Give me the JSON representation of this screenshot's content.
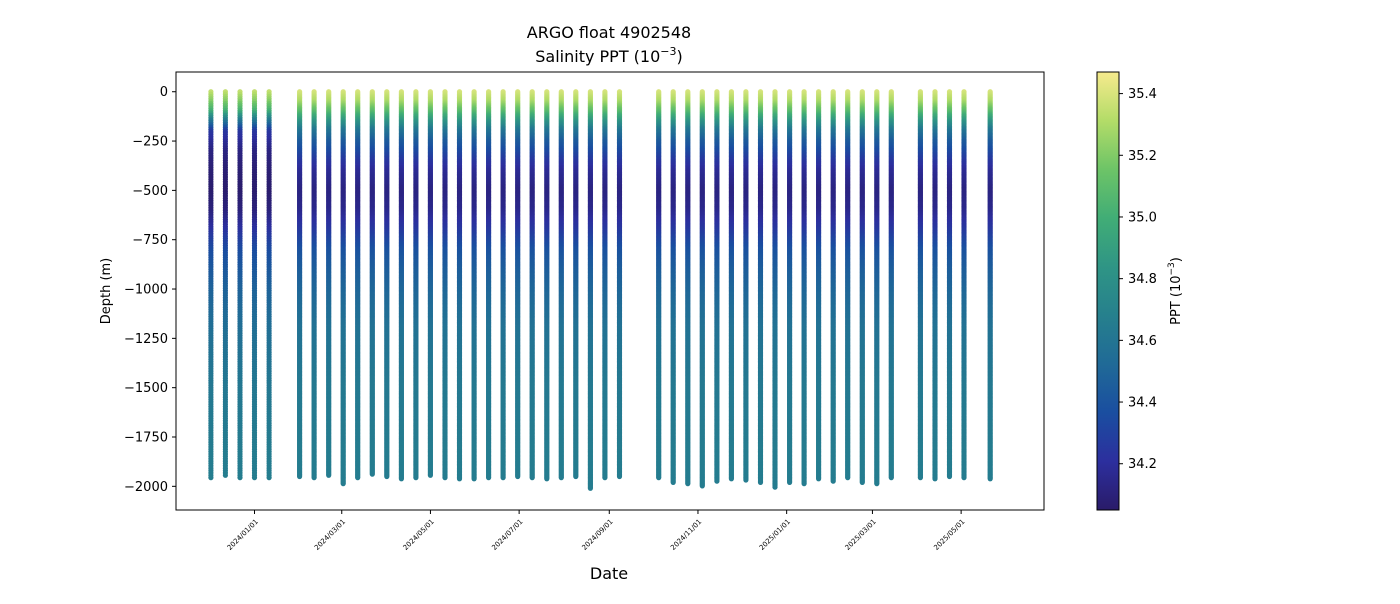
{
  "chart_data": {
    "type": "scatter",
    "title_line1": "ARGO float 4902548",
    "title_line2_prefix": "Salinity PPT (10",
    "title_line2_sup": "−3",
    "title_line2_suffix": ")",
    "xlabel": "Date",
    "ylabel": "Depth (m)",
    "xlim": [
      "2023-11-08",
      "2025-06-27"
    ],
    "ylim": [
      -2120,
      100
    ],
    "x_ticks": [
      "2024/01/01",
      "2024/03/01",
      "2024/05/01",
      "2024/07/01",
      "2024/09/01",
      "2024/11/01",
      "2025/01/01",
      "2025/03/01",
      "2025/05/01"
    ],
    "y_ticks": [
      0,
      -250,
      -500,
      -750,
      -1000,
      -1250,
      -1500,
      -1750,
      -2000
    ],
    "y_tick_labels": [
      "0",
      "−250",
      "−500",
      "−750",
      "−1000",
      "−1250",
      "−1500",
      "−1750",
      "−2000"
    ],
    "grid": false,
    "colorbar": {
      "label_prefix": "PPT (10",
      "label_sup": "−3",
      "label_suffix": ")",
      "colormap_stops": [
        "#2a1b69",
        "#2c2f9e",
        "#1a4ea0",
        "#206a97",
        "#26808d",
        "#2f9585",
        "#41ad76",
        "#6dc467",
        "#b3dc68",
        "#f6ea8d"
      ],
      "vmin": 34.05,
      "vmax": 35.47,
      "ticks": [
        34.2,
        34.4,
        34.6,
        34.8,
        35.0,
        35.2,
        35.4
      ],
      "tick_labels": [
        "34.2",
        "34.4",
        "34.6",
        "34.8",
        "35.0",
        "35.2",
        "35.4"
      ]
    },
    "profile_dates": [
      "2023-12-02",
      "2023-12-12",
      "2023-12-22",
      "2024-01-01",
      "2024-01-11",
      "2024-02-01",
      "2024-02-11",
      "2024-02-21",
      "2024-03-02",
      "2024-03-12",
      "2024-03-22",
      "2024-04-01",
      "2024-04-11",
      "2024-04-21",
      "2024-05-01",
      "2024-05-11",
      "2024-05-21",
      "2024-05-31",
      "2024-06-10",
      "2024-06-20",
      "2024-06-30",
      "2024-07-10",
      "2024-07-20",
      "2024-07-30",
      "2024-08-09",
      "2024-08-19",
      "2024-08-29",
      "2024-09-08",
      "2024-10-05",
      "2024-10-15",
      "2024-10-25",
      "2024-11-04",
      "2024-11-14",
      "2024-11-24",
      "2024-12-04",
      "2024-12-14",
      "2024-12-24",
      "2025-01-03",
      "2025-01-13",
      "2025-01-23",
      "2025-02-02",
      "2025-02-12",
      "2025-02-22",
      "2025-03-04",
      "2025-03-14",
      "2025-04-03",
      "2025-04-13",
      "2025-04-23",
      "2025-05-03",
      "2025-05-21"
    ],
    "profile_max_depths": [
      -1965,
      -1955,
      -1960,
      -1958,
      -1965,
      -1955,
      -1960,
      -1945,
      -1990,
      -1960,
      -1940,
      -1950,
      -1965,
      -1960,
      -1945,
      -1960,
      -1965,
      -1965,
      -1960,
      -1960,
      -1955,
      -1960,
      -1965,
      -1960,
      -1955,
      -2015,
      -1960,
      -1950,
      -1960,
      -1985,
      -1990,
      -2000,
      -1975,
      -1965,
      -1970,
      -1985,
      -2005,
      -1980,
      -1990,
      -1965,
      -1975,
      -1960,
      -1985,
      -1990,
      -1960,
      -1960,
      -1965,
      -1955,
      -1960,
      -1965
    ],
    "salinity_profile_typical": {
      "depth_m": [
        0,
        -50,
        -100,
        -150,
        -200,
        -250,
        -300,
        -350,
        -400,
        -500,
        -600,
        -700,
        -800,
        -900,
        -1000,
        -1200,
        -1500,
        -1800,
        -2000
      ],
      "ppt": [
        35.4,
        35.3,
        35.1,
        34.85,
        34.6,
        34.45,
        34.35,
        34.25,
        34.18,
        34.12,
        34.15,
        34.25,
        34.38,
        34.45,
        34.5,
        34.58,
        34.63,
        34.65,
        34.65
      ]
    },
    "salinity_profile_early": {
      "depth_m": [
        0,
        -50,
        -100,
        -150,
        -200,
        -300,
        -400,
        -500,
        -600,
        -700,
        -800,
        -900,
        -1000,
        -1200,
        -1500,
        -1800,
        -2000
      ],
      "ppt": [
        35.35,
        35.2,
        35.0,
        34.6,
        34.25,
        34.12,
        34.08,
        34.06,
        34.1,
        34.22,
        34.35,
        34.42,
        34.48,
        34.56,
        34.62,
        34.65,
        34.66
      ]
    }
  }
}
